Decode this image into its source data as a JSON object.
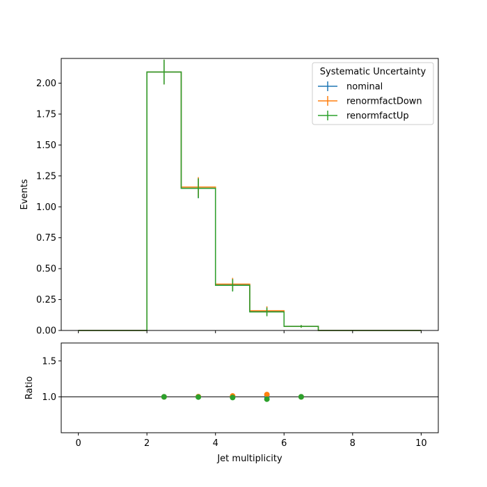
{
  "chart_data": {
    "type": "histogram-with-ratio",
    "xlabel": "Jet multiplicity",
    "xlim": [
      -0.5,
      10.5
    ],
    "x_ticks": [
      0,
      2,
      4,
      6,
      8,
      10
    ],
    "bin_edges": [
      0,
      1,
      2,
      3,
      4,
      5,
      6,
      7,
      8,
      9,
      10
    ],
    "top": {
      "ylabel": "Events",
      "ylim": [
        0,
        2.2
      ],
      "y_ticks": [
        0.0,
        0.25,
        0.5,
        0.75,
        1.0,
        1.25,
        1.5,
        1.75,
        2.0
      ],
      "y_tick_labels": [
        "0.00",
        "0.25",
        "0.50",
        "0.75",
        "1.00",
        "1.25",
        "1.50",
        "1.75",
        "2.00"
      ]
    },
    "bottom": {
      "ylabel": "Ratio",
      "ylim": [
        0.5,
        1.75
      ],
      "y_ticks": [
        1.0,
        1.5
      ],
      "y_tick_labels": [
        "1.0",
        "1.5"
      ],
      "reference_line": 1.0
    },
    "legend": {
      "title": "Systematic Uncertainty",
      "placement": "top-right"
    },
    "series": [
      {
        "name": "nominal",
        "color": "#1f77b4",
        "values": [
          0,
          0,
          2.09,
          1.15,
          0.37,
          0.155,
          0.033,
          0,
          0,
          0
        ],
        "errors": [
          0,
          0,
          0.1,
          0.08,
          0.05,
          0.035,
          0.01,
          0,
          0,
          0
        ],
        "ratio": [
          null,
          null,
          1.0,
          1.0,
          1.0,
          1.0,
          1.0,
          null,
          null,
          null
        ]
      },
      {
        "name": "renormfactDown",
        "color": "#ff7f0e",
        "values": [
          0,
          0,
          2.09,
          1.16,
          0.375,
          0.16,
          0.033,
          0,
          0,
          0
        ],
        "errors": [
          0,
          0,
          0.1,
          0.08,
          0.05,
          0.035,
          0.01,
          0,
          0,
          0
        ],
        "ratio": [
          null,
          null,
          1.0,
          1.003,
          1.012,
          1.032,
          1.0,
          null,
          null,
          null
        ]
      },
      {
        "name": "renormfactUp",
        "color": "#2ca02c",
        "values": [
          0,
          0,
          2.09,
          1.15,
          0.365,
          0.15,
          0.033,
          0,
          0,
          0
        ],
        "errors": [
          0,
          0,
          0.1,
          0.08,
          0.05,
          0.035,
          0.01,
          0,
          0,
          0
        ],
        "ratio": [
          null,
          null,
          1.0,
          0.997,
          0.99,
          0.968,
          1.0,
          null,
          null,
          null
        ]
      }
    ]
  }
}
